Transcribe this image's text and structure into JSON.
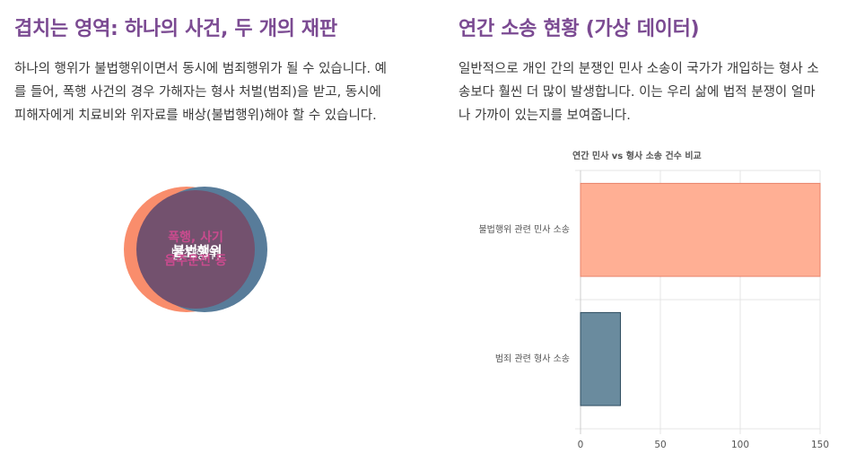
{
  "left": {
    "title": "겹치는 영역: 하나의 사건, 두 개의 재판",
    "description": "하나의 행위가 불법행위이면서 동시에 범죄행위가 될 수 있습니다. 예를 들어, 폭행 사건의 경우 가해자는 형사 처벌(범죄)을 받고, 동시에 피해자에게 치료비와 위자료를 배상(불법행위)해야 할 수 있습니다.",
    "venn": {
      "left_label": "불법행위",
      "right_label": "범죄행위",
      "overlap_label_line1": "폭행, 사기",
      "overlap_label_line2": "음주운전 등",
      "colors": {
        "left": "#f98d6c",
        "right": "#587c9a",
        "overlap": "#73516e",
        "overlap_text": "#c94b8e"
      }
    }
  },
  "right": {
    "title": "연간 소송 현황 (가상 데이터)",
    "description": "일반적으로 개인 간의 분쟁인 민사 소송이 국가가 개입하는 형사 소송보다 훨씬 더 많이 발생합니다. 이는 우리 삶에 법적 분쟁이 얼마나 가까이 있는지를 보여줍니다."
  },
  "chart_data": {
    "type": "bar",
    "orientation": "horizontal",
    "title": "연간 민사 vs 형사 소송 건수 비교",
    "categories": [
      "불법행위 관련 민사 소송",
      "범죄 관련 형사 소송"
    ],
    "values": [
      150,
      25
    ],
    "xlim": [
      0,
      150
    ],
    "xticks": [
      0,
      50,
      100,
      150
    ],
    "grid": true,
    "legend": "none",
    "colors": [
      "#ffaf94",
      "#6a8b9e"
    ],
    "border_colors": [
      "#e8836a",
      "#2f4d60"
    ]
  }
}
